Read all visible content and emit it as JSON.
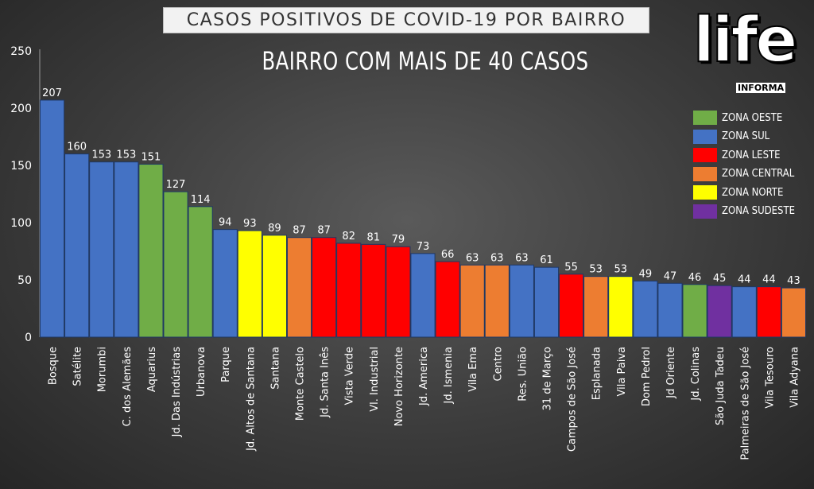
{
  "title": "CASOS POSITIVOS DE COVID-19 POR BAIRRO",
  "subtitle": "BAIRRO COM MAIS DE 40 CASOS",
  "logo": {
    "main": "life",
    "sub": "INFORMA"
  },
  "zones": {
    "oeste": {
      "label": "ZONA OESTE",
      "color": "#70ad47"
    },
    "sul": {
      "label": "ZONA SUL",
      "color": "#4472c4"
    },
    "leste": {
      "label": "ZONA LESTE",
      "color": "#ff0000"
    },
    "central": {
      "label": "ZONA CENTRAL",
      "color": "#ed7d31"
    },
    "norte": {
      "label": "ZONA NORTE",
      "color": "#ffff00"
    },
    "sudeste": {
      "label": "ZONA SUDESTE",
      "color": "#7030a0"
    }
  },
  "legend_order": [
    "oeste",
    "sul",
    "leste",
    "central",
    "norte",
    "sudeste"
  ],
  "chart_data": {
    "type": "bar",
    "title": "CASOS POSITIVOS DE COVID-19 POR BAIRRO",
    "subtitle": "BAIRRO COM MAIS DE 40 CASOS",
    "ylim": [
      0,
      250
    ],
    "yticks": [
      0,
      50,
      100,
      150,
      200,
      250
    ],
    "grid": false,
    "legend_position": "right",
    "categories": [
      "Bosque",
      "Satélite",
      "Morumbi",
      "C. dos Alemães",
      "Aquarius",
      "Jd. Das Indústrias",
      "Urbanova",
      "Parque",
      "Jd. Altos de Santana",
      "Santana",
      "Monte Castelo",
      "Jd. Santa Inês",
      "Vista Verde",
      "Vl. Industrial",
      "Novo Horizonte",
      "Jd. America",
      "Jd. Ismenia",
      "Vila Ema",
      "Centro",
      "Res. União",
      "31 de Março",
      "Campos de São José",
      "Esplanada",
      "Vila Paiva",
      "Dom Pedrol",
      "Jd Oriente",
      "Jd. Colinas",
      "São Juda Tadeu",
      "Palmeiras de São José",
      "Vila Tesouro",
      "Vila Adyana"
    ],
    "values": [
      207,
      160,
      153,
      153,
      151,
      127,
      114,
      94,
      93,
      89,
      87,
      87,
      82,
      81,
      79,
      73,
      66,
      63,
      63,
      63,
      61,
      55,
      53,
      53,
      49,
      47,
      46,
      45,
      44,
      44,
      43
    ],
    "zone": [
      "sul",
      "sul",
      "sul",
      "sul",
      "oeste",
      "oeste",
      "oeste",
      "sul",
      "norte",
      "norte",
      "central",
      "leste",
      "leste",
      "leste",
      "leste",
      "sul",
      "leste",
      "central",
      "central",
      "sul",
      "sul",
      "leste",
      "central",
      "norte",
      "sul",
      "sul",
      "oeste",
      "sudeste",
      "sul",
      "leste",
      "central"
    ]
  }
}
